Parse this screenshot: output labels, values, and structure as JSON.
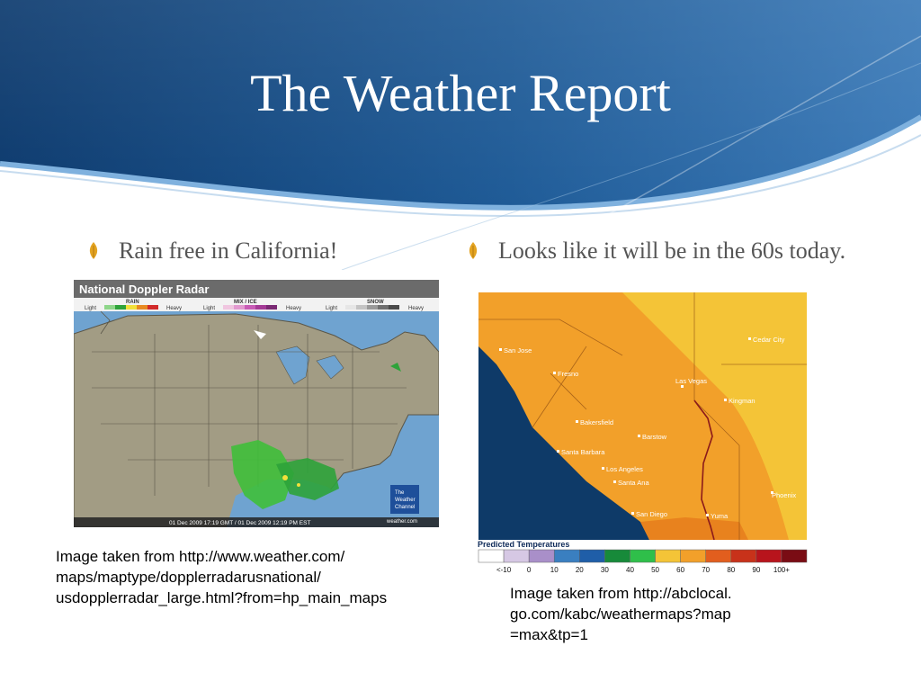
{
  "slide": {
    "title": "The Weather Report",
    "bullets": [
      {
        "text": "Rain free in California!"
      },
      {
        "text": "Looks like it will be in the 60s today."
      }
    ],
    "captions": {
      "left": "Image taken from http://www.weather.com/\nmaps/maptype/dopplerradarusnational/\nusdopplerradar_large.html?from=hp_main_maps",
      "right": "Image taken from http://abclocal.\ngo.com/kabc/weathermaps?map\n=max&tp=1"
    }
  },
  "radar_map": {
    "title": "National Doppler Radar",
    "legend_groups": [
      {
        "name": "RAIN",
        "light": "Light",
        "heavy": "Heavy"
      },
      {
        "name": "MIX / ICE",
        "light": "Light",
        "heavy": "Heavy"
      },
      {
        "name": "SNOW",
        "light": "Light",
        "heavy": "Heavy"
      }
    ],
    "timestamp": "01 Dec 2009 17:19 GMT / 01 Dec 2009 12:19 PM EST",
    "logo_lines": [
      "The",
      "Weather",
      "Channel"
    ],
    "logo_url": "weather.com"
  },
  "temp_map": {
    "cities": [
      "San Jose",
      "Fresno",
      "Las Vegas",
      "Cedar City",
      "Bakersfield",
      "Barstow",
      "Kingman",
      "Santa Barbara",
      "Los Angeles",
      "Santa Ana",
      "Phoenix",
      "San Diego",
      "Yuma"
    ],
    "legend_title": "Predicted Temperatures",
    "legend_labels": [
      "<-10",
      "0",
      "10",
      "20",
      "30",
      "40",
      "50",
      "60",
      "70",
      "80",
      "90",
      "100+"
    ],
    "legend_colors": [
      "#ffffff",
      "#d6c8e4",
      "#a98fc9",
      "#3a7fc0",
      "#1f5ea8",
      "#178a3a",
      "#2fbf4a",
      "#f4c437",
      "#f2a02a",
      "#e25e1e",
      "#c8321a",
      "#b8141c",
      "#7a0c14"
    ]
  }
}
